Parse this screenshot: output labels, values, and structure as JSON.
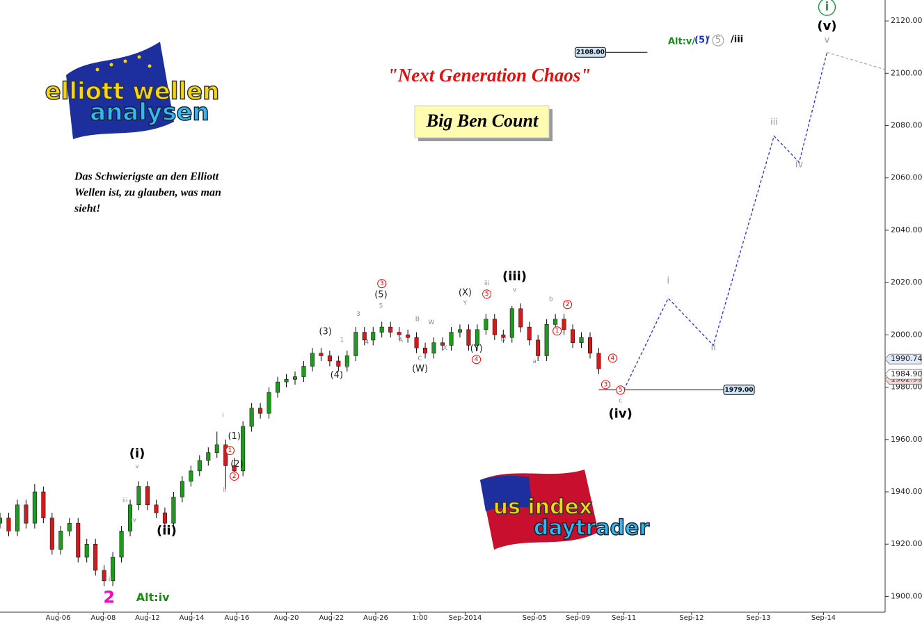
{
  "chart_data": {
    "type": "candlestick",
    "title": "\"Next Generation Chaos\"",
    "subtitle": "Big Ben Count",
    "quote": [
      "Das Schwierigste an den Elliott",
      "Wellen ist, zu glauben, was man",
      "sieht!"
    ],
    "logos": {
      "top": [
        "elliott wellen",
        "analysen"
      ],
      "bottom": [
        "us index",
        "daytrader"
      ]
    },
    "alt_count": [
      "Alt:v/",
      "(5)",
      "/",
      "5",
      "/iii"
    ],
    "up_color": "#1e9a1e",
    "down_color": "#d01c1c",
    "xlim": [
      0,
      102
    ],
    "ylim": [
      1894,
      2128
    ],
    "xticks": [
      {
        "value": 6.7,
        "label": "Aug-06"
      },
      {
        "value": 11.9,
        "label": "Aug-08"
      },
      {
        "value": 17,
        "label": "Aug-12"
      },
      {
        "value": 22.1,
        "label": "Aug-14"
      },
      {
        "value": 27.3,
        "label": "Aug-16"
      },
      {
        "value": 33,
        "label": "Aug-20"
      },
      {
        "value": 38.2,
        "label": "Aug-22"
      },
      {
        "value": 43.3,
        "label": "Aug-26"
      },
      {
        "value": 48.4,
        "label": "1:00"
      },
      {
        "value": 53.6,
        "label": "Sep-2014"
      },
      {
        "value": 61.6,
        "label": "Sep-05"
      },
      {
        "value": 66.6,
        "label": "Sep-09"
      },
      {
        "value": 71.9,
        "label": "Sep-11"
      },
      {
        "value": 79.7,
        "label": "Sep-12"
      },
      {
        "value": 87.4,
        "label": "Sep-13"
      },
      {
        "value": 94.9,
        "label": "Sep-14"
      }
    ],
    "yticks": [
      {
        "value": 1900,
        "label": "1900.00"
      },
      {
        "value": 1920,
        "label": "1920.00"
      },
      {
        "value": 1940,
        "label": "1940.00"
      },
      {
        "value": 1960,
        "label": "1960.00"
      },
      {
        "value": 1980,
        "label": "1980.00"
      },
      {
        "value": 2000,
        "label": "2000.00"
      },
      {
        "value": 2020,
        "label": "2020.00"
      },
      {
        "value": 2040,
        "label": "2040.00"
      },
      {
        "value": 2060,
        "label": "2060.00"
      },
      {
        "value": 2080,
        "label": "2080.00"
      },
      {
        "value": 2100,
        "label": "2100.00"
      },
      {
        "value": 2120,
        "label": "2120.00"
      }
    ],
    "open": [
      1928,
      1930,
      1925,
      1935,
      1928,
      1940,
      1930,
      1918,
      1925,
      1928,
      1915,
      1920,
      1910,
      1906,
      1915,
      1925,
      1935,
      1942,
      1935,
      1932,
      1928,
      1938,
      1944,
      1948,
      1952,
      1955,
      1958,
      1950,
      1948,
      1965,
      1972,
      1970,
      1978,
      1982,
      1983,
      1984,
      1988,
      1993,
      1992,
      1990,
      1988,
      1992,
      2001,
      1998,
      2001,
      2003,
      2001,
      2000,
      1999,
      1995,
      1993,
      1997,
      1996,
      2001,
      2002,
      1996,
      2002,
      2006,
      2000,
      1999,
      2010,
      2003,
      1998,
      1992,
      2004,
      2006,
      2002,
      1997,
      1999,
      1993
    ],
    "high": [
      1932,
      1932,
      1937,
      1937,
      1943,
      1942,
      1932,
      1927,
      1930,
      1930,
      1922,
      1922,
      1912,
      1917,
      1927,
      1937,
      1944,
      1944,
      1937,
      1934,
      1940,
      1946,
      1950,
      1954,
      1957,
      1963,
      1960,
      1953,
      1967,
      1974,
      1974,
      1980,
      1984,
      1985,
      1986,
      1990,
      1995,
      1995,
      1994,
      1992,
      1994,
      2003,
      2003,
      2003,
      2005,
      2005,
      2003,
      2002,
      2001,
      1997,
      1999,
      1999,
      2003,
      2004,
      2004,
      2004,
      2008,
      2008,
      2002,
      2011,
      2012,
      2005,
      2000,
      2006,
      2008,
      2008,
      2004,
      2001,
      2001,
      1995
    ],
    "low": [
      1926,
      1923,
      1923,
      1926,
      1926,
      1928,
      1916,
      1916,
      1923,
      1913,
      1913,
      1908,
      1904,
      1904,
      1913,
      1923,
      1933,
      1933,
      1930,
      1926,
      1926,
      1936,
      1942,
      1946,
      1950,
      1953,
      1941,
      1946,
      1946,
      1963,
      1968,
      1968,
      1976,
      1980,
      1981,
      1982,
      1986,
      1990,
      1988,
      1986,
      1986,
      1990,
      1996,
      1996,
      1999,
      1999,
      1998,
      1997,
      1993,
      1991,
      1991,
      1994,
      1994,
      1999,
      1994,
      1994,
      2000,
      1998,
      1997,
      1997,
      2001,
      1996,
      1990,
      1990,
      2002,
      2000,
      1995,
      1995,
      1991,
      1985
    ],
    "close": [
      1930,
      1925,
      1935,
      1928,
      1940,
      1930,
      1918,
      1925,
      1928,
      1915,
      1920,
      1910,
      1906,
      1915,
      1925,
      1935,
      1942,
      1935,
      1932,
      1928,
      1938,
      1944,
      1948,
      1952,
      1955,
      1958,
      1950,
      1948,
      1965,
      1972,
      1970,
      1978,
      1982,
      1983,
      1984,
      1988,
      1993,
      1992,
      1990,
      1988,
      1992,
      2001,
      1998,
      2001,
      2003,
      2001,
      2000,
      1999,
      1995,
      1993,
      1997,
      1996,
      2001,
      2002,
      1996,
      2002,
      2006,
      2000,
      1999,
      2010,
      2003,
      1998,
      1992,
      2004,
      2006,
      2002,
      1997,
      1999,
      1993,
      1987
    ],
    "projections": [
      {
        "color": "#2233cc",
        "x": [
          71.9,
          77,
          82.2,
          89.2,
          92.1,
          95.3
        ],
        "values": [
          1979,
          2014,
          1996,
          2076,
          2066,
          2108
        ]
      },
      {
        "color": "#aaaaaa",
        "x": [
          95.3,
          102
        ],
        "values": [
          2108,
          2101.4
        ]
      }
    ],
    "levels": [
      {
        "value": 2108,
        "label": "2108.00",
        "x": [
          69.8,
          74.6
        ],
        "label_side": "left"
      },
      {
        "value": 1979,
        "label": "1979.00",
        "x": [
          69,
          83.4
        ],
        "label_side": "right"
      }
    ],
    "price_tags": [
      {
        "value": 1990.74,
        "label": "1990.74",
        "color": "#dfe9f7"
      },
      {
        "value": 1982.99,
        "label": "1982.99",
        "color": "#f7d6d6"
      },
      {
        "value": 1984.9,
        "label": "1984.90",
        "color": "#ffffff"
      }
    ],
    "annotations": [
      {
        "text": "(i)",
        "x": 15.8,
        "y": 1954.5,
        "style": "wave-major"
      },
      {
        "text": "(ii)",
        "x": 19.2,
        "y": 1925,
        "style": "wave-major"
      },
      {
        "text": "(iii)",
        "x": 59.3,
        "y": 2022.2,
        "style": "wave-major"
      },
      {
        "text": "(iv)",
        "x": 71.5,
        "y": 1969.6,
        "style": "wave-major"
      },
      {
        "text": "(v)",
        "x": 95.3,
        "y": 2117.9,
        "style": "wave-major"
      },
      {
        "text": "i",
        "x": 95.3,
        "y": 2125.3,
        "style": "circled-green"
      },
      {
        "text": "v",
        "x": 15.8,
        "y": 1949.7,
        "style": "wave-gray"
      },
      {
        "text": "iii",
        "x": 14.4,
        "y": 1936.7,
        "style": "wave-gray"
      },
      {
        "text": "iv",
        "x": 15.4,
        "y": 1929.2,
        "style": "wave-gray"
      },
      {
        "text": "ii",
        "x": 12.7,
        "y": 1906.5,
        "style": "wave-gray"
      },
      {
        "text": "i",
        "x": 25.7,
        "y": 1969.3,
        "style": "wave-gray"
      },
      {
        "text": "ii",
        "x": 25.9,
        "y": 1940.7,
        "style": "wave-gray"
      },
      {
        "text": "(1)",
        "x": 27,
        "y": 1961.1,
        "style": "wave-minor"
      },
      {
        "text": "(2)",
        "x": 27.3,
        "y": 1950.5,
        "style": "wave-minor"
      },
      {
        "text": "1",
        "x": 26.5,
        "y": 1955.8,
        "style": "circled-red"
      },
      {
        "text": "2",
        "x": 27,
        "y": 1946,
        "style": "circled-red"
      },
      {
        "text": "(3)",
        "x": 37.5,
        "y": 2001.2,
        "style": "wave-minor"
      },
      {
        "text": "(4)",
        "x": 38.8,
        "y": 1984.5,
        "style": "wave-minor"
      },
      {
        "text": "1",
        "x": 39.4,
        "y": 1998,
        "style": "wave-gray"
      },
      {
        "text": "2",
        "x": 40,
        "y": 1988,
        "style": "wave-gray"
      },
      {
        "text": "3",
        "x": 41.3,
        "y": 2007.9,
        "style": "wave-gray"
      },
      {
        "text": "4",
        "x": 42.3,
        "y": 1997.2,
        "style": "wave-gray"
      },
      {
        "text": "3",
        "x": 44,
        "y": 2019.6,
        "style": "circled-red"
      },
      {
        "text": "(5)",
        "x": 43.9,
        "y": 2015.3,
        "style": "wave-minor"
      },
      {
        "text": "5",
        "x": 43.9,
        "y": 2011,
        "style": "wave-gray"
      },
      {
        "text": "A",
        "x": 46.2,
        "y": 1998,
        "style": "wave-gray"
      },
      {
        "text": "B",
        "x": 48.1,
        "y": 2006,
        "style": "wave-gray"
      },
      {
        "text": "W",
        "x": 49.7,
        "y": 2004.7,
        "style": "wave-gray"
      },
      {
        "text": "C",
        "x": 48.4,
        "y": 1990.9,
        "style": "wave-gray"
      },
      {
        "text": "(W)",
        "x": 48.4,
        "y": 1986.9,
        "style": "wave-minor"
      },
      {
        "text": "X",
        "x": 51.3,
        "y": 1994.9,
        "style": "wave-gray"
      },
      {
        "text": "(X)",
        "x": 53.6,
        "y": 2016.1,
        "style": "wave-minor"
      },
      {
        "text": "Y",
        "x": 53.6,
        "y": 2012.1,
        "style": "wave-gray"
      },
      {
        "text": "(Y)",
        "x": 54.9,
        "y": 1994.6,
        "style": "wave-minor"
      },
      {
        "text": "4",
        "x": 54.9,
        "y": 1990.6,
        "style": "circled-red"
      },
      {
        "text": "iii",
        "x": 56.1,
        "y": 2019.6,
        "style": "wave-gray"
      },
      {
        "text": "5",
        "x": 56.1,
        "y": 2015.6,
        "style": "circled-red"
      },
      {
        "text": "iv",
        "x": 58,
        "y": 1998.3,
        "style": "wave-gray"
      },
      {
        "text": "v",
        "x": 59.3,
        "y": 2017.2,
        "style": "wave-gray"
      },
      {
        "text": "a",
        "x": 61.6,
        "y": 1989.8,
        "style": "wave-gray"
      },
      {
        "text": "b",
        "x": 63.5,
        "y": 2013.7,
        "style": "wave-gray"
      },
      {
        "text": "1",
        "x": 64.2,
        "y": 2001.5,
        "style": "circled-red"
      },
      {
        "text": "2",
        "x": 65.4,
        "y": 2011.6,
        "style": "circled-red"
      },
      {
        "text": "4",
        "x": 70.6,
        "y": 1991.1,
        "style": "circled-red"
      },
      {
        "text": "3",
        "x": 69.8,
        "y": 1981,
        "style": "circled-red"
      },
      {
        "text": "5",
        "x": 71.5,
        "y": 1978.9,
        "style": "circled-red"
      },
      {
        "text": "c",
        "x": 71.5,
        "y": 1974.9,
        "style": "wave-gray"
      },
      {
        "text": "i",
        "x": 77,
        "y": 2020.6,
        "style": "proj"
      },
      {
        "text": "ii",
        "x": 82.2,
        "y": 1995.1,
        "style": "proj"
      },
      {
        "text": "iii",
        "x": 89.2,
        "y": 2081.2,
        "style": "proj"
      },
      {
        "text": "iv",
        "x": 92.1,
        "y": 2065,
        "style": "proj"
      },
      {
        "text": "v",
        "x": 95.3,
        "y": 2112.6,
        "style": "proj"
      },
      {
        "text": "2",
        "x": 11.9,
        "y": 1899.5,
        "style": "label-magenta"
      },
      {
        "text": "Alt:iv",
        "x": 15.7,
        "y": 1899.5,
        "style": "label-green"
      }
    ]
  }
}
